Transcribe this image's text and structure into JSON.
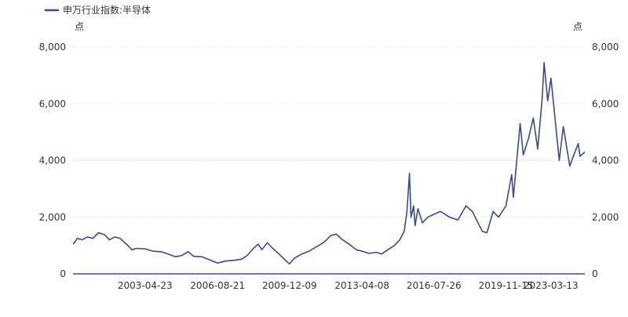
{
  "chart_data": {
    "type": "line",
    "legend": {
      "label": "申万行业指数:半导体",
      "position": "top-left"
    },
    "y_unit_left": "点",
    "y_unit_right": "点",
    "ylim": [
      0,
      8000
    ],
    "y_ticks": [
      0,
      2000,
      4000,
      6000,
      8000
    ],
    "y_tick_labels": [
      "0",
      "2,000",
      "4,000",
      "6,000",
      "8,000"
    ],
    "x_range": [
      "2000-01-01",
      "2023-06-30"
    ],
    "x_ticks": [
      "2003-04-23",
      "2006-08-21",
      "2009-12-09",
      "2013-04-08",
      "2016-07-26",
      "2019-11-15",
      "2023-03-13"
    ],
    "grid": true,
    "color": "#3b4a8f",
    "series": [
      {
        "name": "申万行业指数:半导体",
        "points": [
          [
            "2000-01-04",
            1050
          ],
          [
            "2000-03-15",
            1250
          ],
          [
            "2000-06-01",
            1200
          ],
          [
            "2000-09-01",
            1300
          ],
          [
            "2000-12-01",
            1250
          ],
          [
            "2001-03-01",
            1450
          ],
          [
            "2001-06-15",
            1380
          ],
          [
            "2001-09-01",
            1200
          ],
          [
            "2001-12-01",
            1300
          ],
          [
            "2002-03-01",
            1250
          ],
          [
            "2002-06-15",
            1050
          ],
          [
            "2002-09-15",
            850
          ],
          [
            "2002-12-01",
            900
          ],
          [
            "2003-04-23",
            880
          ],
          [
            "2003-09-01",
            800
          ],
          [
            "2004-01-15",
            780
          ],
          [
            "2004-04-15",
            720
          ],
          [
            "2004-09-15",
            600
          ],
          [
            "2005-01-01",
            650
          ],
          [
            "2005-04-15",
            780
          ],
          [
            "2005-07-15",
            620
          ],
          [
            "2005-12-01",
            600
          ],
          [
            "2006-04-01",
            500
          ],
          [
            "2006-08-21",
            380
          ],
          [
            "2007-01-01",
            450
          ],
          [
            "2007-06-01",
            480
          ],
          [
            "2007-10-01",
            520
          ],
          [
            "2008-01-01",
            650
          ],
          [
            "2008-04-15",
            900
          ],
          [
            "2008-07-01",
            1050
          ],
          [
            "2008-09-01",
            850
          ],
          [
            "2008-12-01",
            1100
          ],
          [
            "2009-03-01",
            900
          ],
          [
            "2009-06-15",
            700
          ],
          [
            "2009-10-01",
            480
          ],
          [
            "2009-12-09",
            350
          ],
          [
            "2010-03-01",
            550
          ],
          [
            "2010-07-01",
            700
          ],
          [
            "2010-11-01",
            800
          ],
          [
            "2011-03-01",
            950
          ],
          [
            "2011-07-01",
            1100
          ],
          [
            "2011-11-01",
            1350
          ],
          [
            "2012-02-01",
            1400
          ],
          [
            "2012-05-15",
            1200
          ],
          [
            "2012-09-01",
            1050
          ],
          [
            "2013-01-01",
            850
          ],
          [
            "2013-04-08",
            800
          ],
          [
            "2013-08-01",
            720
          ],
          [
            "2013-12-01",
            760
          ],
          [
            "2014-03-01",
            700
          ],
          [
            "2014-06-15",
            850
          ],
          [
            "2014-10-01",
            1000
          ],
          [
            "2015-01-01",
            1200
          ],
          [
            "2015-03-15",
            1500
          ],
          [
            "2015-05-01",
            2200
          ],
          [
            "2015-06-12",
            3550
          ],
          [
            "2015-07-08",
            2000
          ],
          [
            "2015-08-20",
            2400
          ],
          [
            "2015-09-15",
            1700
          ],
          [
            "2015-11-01",
            2300
          ],
          [
            "2016-01-15",
            1800
          ],
          [
            "2016-04-15",
            2000
          ],
          [
            "2016-07-26",
            2100
          ],
          [
            "2016-11-15",
            2200
          ],
          [
            "2017-04-15",
            2000
          ],
          [
            "2017-09-01",
            1900
          ],
          [
            "2018-01-15",
            2400
          ],
          [
            "2018-05-01",
            2200
          ],
          [
            "2018-10-15",
            1500
          ],
          [
            "2019-01-01",
            1450
          ],
          [
            "2019-04-15",
            2200
          ],
          [
            "2019-07-15",
            2000
          ],
          [
            "2019-11-15",
            2400
          ],
          [
            "2020-02-20",
            3500
          ],
          [
            "2020-03-20",
            2700
          ],
          [
            "2020-07-10",
            5300
          ],
          [
            "2020-09-01",
            4200
          ],
          [
            "2020-12-01",
            4800
          ],
          [
            "2021-02-15",
            5500
          ],
          [
            "2021-05-01",
            4400
          ],
          [
            "2021-07-15",
            6200
          ],
          [
            "2021-08-16",
            7450
          ],
          [
            "2021-10-15",
            6100
          ],
          [
            "2021-12-10",
            6900
          ],
          [
            "2022-02-01",
            5800
          ],
          [
            "2022-04-27",
            4000
          ],
          [
            "2022-07-05",
            5200
          ],
          [
            "2022-10-20",
            3800
          ],
          [
            "2023-01-15",
            4300
          ],
          [
            "2023-03-13",
            4600
          ],
          [
            "2023-04-10",
            4150
          ],
          [
            "2023-06-30",
            4300
          ]
        ]
      }
    ]
  }
}
